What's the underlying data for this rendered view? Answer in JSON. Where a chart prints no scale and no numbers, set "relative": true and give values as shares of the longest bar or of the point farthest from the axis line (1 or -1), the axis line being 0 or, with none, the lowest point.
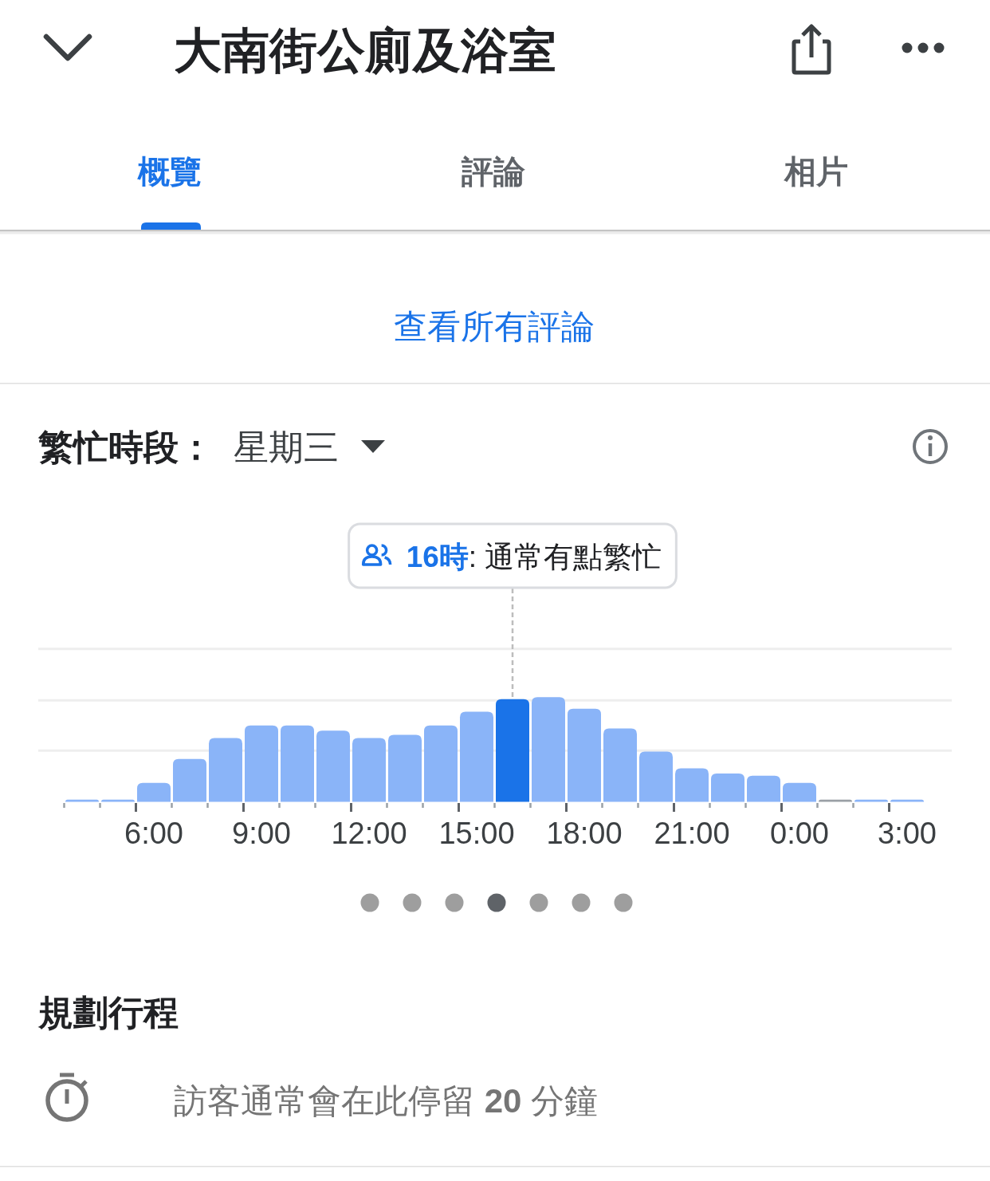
{
  "chart_data": {
    "type": "bar",
    "title": "大南街公廁及浴室",
    "subtitle": "繁忙時段：",
    "categories": [
      null,
      null,
      "6:00",
      null,
      null,
      "9:00",
      null,
      null,
      "12:00",
      null,
      null,
      "15:00",
      null,
      null,
      "18:00",
      null,
      null,
      "21:00",
      null,
      null,
      "0:00",
      null,
      null,
      "3:00"
    ],
    "values": [
      0.02,
      0.02,
      0.18,
      0.41,
      0.61,
      0.73,
      0.73,
      0.68,
      0.61,
      0.64,
      0.73,
      0.86,
      0.98,
      1,
      0.89,
      0.7,
      0.48,
      0.32,
      0.27,
      0.25,
      0.18,
      0.02,
      0.02,
      0.02
    ],
    "colors": [
      "#8ab4f8",
      "#8ab4f8",
      "#8ab4f8",
      "#8ab4f8",
      "#8ab4f8",
      "#8ab4f8",
      "#8ab4f8",
      "#8ab4f8",
      "#8ab4f8",
      "#8ab4f8",
      "#8ab4f8",
      "#8ab4f8",
      "#1a73e8",
      "#8ab4f8",
      "#8ab4f8",
      "#8ab4f8",
      "#8ab4f8",
      "#8ab4f8",
      "#8ab4f8",
      "#8ab4f8",
      "#8ab4f8",
      "#9aa0a6",
      "#8ab4f8",
      "#8ab4f8"
    ],
    "relative": true,
    "ref_lines": [
      {
        "axis": "y",
        "value": 0.49,
        "color": "#eeeeee"
      },
      {
        "axis": "y",
        "value": 0.97,
        "color": "#eeeeee"
      },
      {
        "axis": "y",
        "value": 1.46,
        "color": "#eeeeee"
      }
    ],
    "annotations": [
      "概覽",
      "評論",
      "相片",
      "查看所有評論",
      "星期三",
      "**16時**: 通常有點繁忙",
      "規劃行程",
      "訪客通常會在此停留 **20** 分鐘"
    ]
  }
}
